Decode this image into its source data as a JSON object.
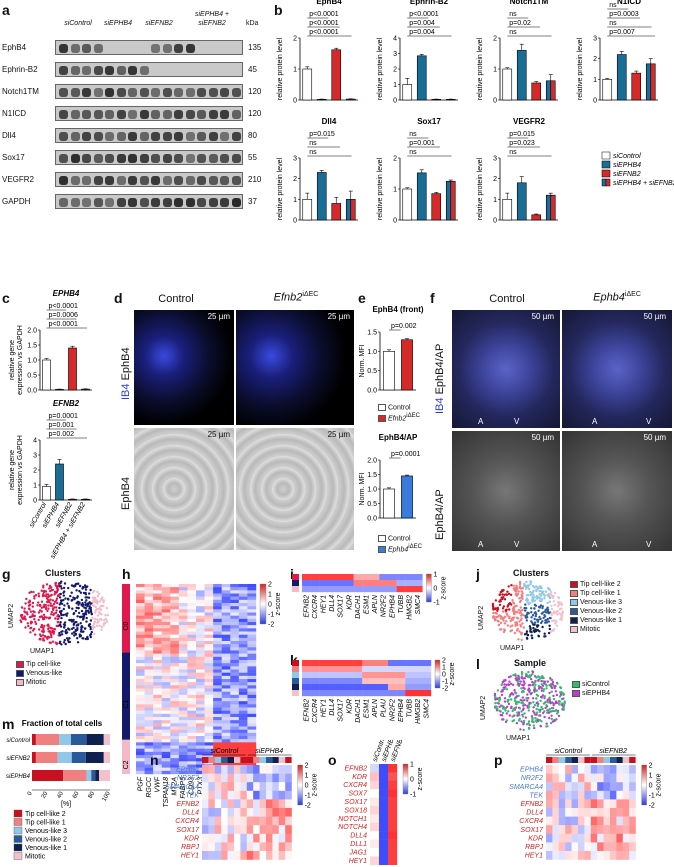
{
  "panels": {
    "a": {
      "label": "a",
      "conditions": [
        "siControl",
        "siEPHB4",
        "siEFNB2",
        "siEPHB4 +\nsiEFNB2"
      ],
      "kda_label": "kDa",
      "rows": [
        {
          "name": "EphB4",
          "kda": "135"
        },
        {
          "name": "Ephrin-B2",
          "kda": "45"
        },
        {
          "name": "Notch1TM",
          "kda": "120"
        },
        {
          "name": "N1ICD",
          "kda": "120"
        },
        {
          "name": "Dll4",
          "kda": "80"
        },
        {
          "name": "Sox17",
          "kda": "55"
        },
        {
          "name": "VEGFR2",
          "kda": "210"
        },
        {
          "name": "GAPDH",
          "kda": "37"
        }
      ]
    },
    "b": {
      "label": "b",
      "ylabel": "relative protein level",
      "legend": [
        "siControl",
        "siEPHB4",
        "siEFNB2",
        "siEPHB4 + siEFNB2"
      ],
      "charts": [
        {
          "title": "EphB4",
          "ymax": 2,
          "yticks": [
            "0",
            "1",
            "2"
          ],
          "values": [
            1.0,
            0.02,
            1.62,
            0.03
          ],
          "errs": [
            0.07,
            0.01,
            0.05,
            0.01
          ],
          "stats": [
            "p<0.0001",
            "p<0.0001",
            "p<0.0001"
          ]
        },
        {
          "title": "Ephrin-B2",
          "ymax": 4,
          "yticks": [
            "0",
            "1",
            "2",
            "3",
            "4"
          ],
          "values": [
            1.0,
            2.85,
            0.04,
            0.04
          ],
          "errs": [
            0.4,
            0.1,
            0.02,
            0.02
          ],
          "stats": [
            "p=0.004",
            "p=0.004",
            "p<0.0001"
          ]
        },
        {
          "title": "Notch1TM",
          "ymax": 2,
          "yticks": [
            "0",
            "1",
            "2"
          ],
          "values": [
            1.0,
            1.6,
            0.55,
            0.62
          ],
          "errs": [
            0.04,
            0.2,
            0.04,
            0.2
          ],
          "stats": [
            "ns",
            "p=0.02",
            "ns"
          ]
        },
        {
          "title": "N1ICD",
          "ymax": 3,
          "yticks": [
            "0",
            "1",
            "2",
            "3"
          ],
          "values": [
            1.0,
            2.2,
            1.3,
            1.75
          ],
          "errs": [
            0.04,
            0.15,
            0.1,
            0.25
          ],
          "stats": [
            "p=0.007",
            "ns",
            "p=0.0003",
            "ns"
          ]
        },
        {
          "title": "Dll4",
          "ymax": 3,
          "yticks": [
            "0",
            "1",
            "2",
            "3"
          ],
          "values": [
            1.0,
            2.3,
            0.8,
            1.0
          ],
          "errs": [
            0.3,
            0.1,
            0.3,
            0.4
          ],
          "stats": [
            "ns",
            "ns",
            "p=0.015"
          ]
        },
        {
          "title": "Sox17",
          "ymax": 2,
          "yticks": [
            "0",
            "1",
            "2"
          ],
          "values": [
            1.0,
            1.52,
            0.85,
            1.25
          ],
          "errs": [
            0.04,
            0.1,
            0.04,
            0.04
          ],
          "stats": [
            "ns",
            "p=0.001",
            "ns"
          ]
        },
        {
          "title": "VEGFR2",
          "ymax": 3,
          "yticks": [
            "0",
            "1",
            "2",
            "3"
          ],
          "values": [
            1.0,
            1.8,
            0.25,
            1.2
          ],
          "errs": [
            0.3,
            0.3,
            0.04,
            0.1
          ],
          "stats": [
            "ns",
            "p=0.023",
            "p=0.015"
          ]
        }
      ]
    },
    "c": {
      "label": "c",
      "ylabel": "relative gene\nexpression vs GAPDH",
      "xlabels": [
        "siControl",
        "siEPHB4",
        "siEFNB2",
        "siEPHB4 + siEFNB2"
      ],
      "charts": [
        {
          "title": "EPHB4",
          "ymax": 2,
          "yticks": [
            "0.0",
            "0.5",
            "1.0",
            "1.5",
            "2.0"
          ],
          "values": [
            1.0,
            0.02,
            1.4,
            0.03
          ],
          "errs": [
            0.05,
            0.01,
            0.06,
            0.01
          ],
          "stats": [
            "p<0.0001",
            "p=0.0006",
            "p<0.0001"
          ]
        },
        {
          "title": "EFNB2",
          "ymax": 4,
          "yticks": [
            "0",
            "1",
            "2",
            "3",
            "4"
          ],
          "values": [
            0.9,
            2.4,
            0.05,
            0.05
          ],
          "errs": [
            0.15,
            0.3,
            0.02,
            0.02
          ],
          "stats": [
            "p=0.002",
            "p=0.001",
            "p=0.0001"
          ]
        }
      ]
    },
    "d": {
      "label": "d",
      "col1": "Control",
      "col2": "Efnb2",
      "col2_sup": "iΔEC",
      "row1": "IB4 EphB4",
      "row1_a": "IB4",
      "row1_b": "EphB4",
      "row2": "EphB4",
      "scale": "25 µm"
    },
    "e": {
      "label": "e",
      "charts": [
        {
          "title": "EphB4 (front)",
          "ylabel": "Norm. MFI",
          "ymax": 1.5,
          "yticks": [
            "0.0",
            "0.5",
            "1.0",
            "1.5"
          ],
          "values": [
            1.0,
            1.3
          ],
          "errs": [
            0.04,
            0.03
          ],
          "stat": "p=0.002",
          "legend": [
            "Control",
            "Efnb2"
          ],
          "legend_sup": "iΔEC",
          "color": "#d42a2a"
        },
        {
          "title": "EphB4/AP",
          "ylabel": "Norm. MFI",
          "ymax": 2.0,
          "yticks": [
            "0.0",
            "0.5",
            "1.0",
            "1.5",
            "2.0"
          ],
          "values": [
            1.0,
            1.45
          ],
          "errs": [
            0.04,
            0.03
          ],
          "stat": "p=0.0001",
          "legend": [
            "Control",
            "Ephb4"
          ],
          "legend_sup": "iΔEC",
          "color": "#3a7be0"
        }
      ]
    },
    "f": {
      "label": "f",
      "col1": "Control",
      "col2": "Ephb4",
      "col2_sup": "iΔEC",
      "row1": "IB4 EphB4/AP",
      "row1_a": "IB4",
      "row1_b": "EphB4/AP",
      "row2": "EphB4/AP",
      "scale": "50 µm",
      "a_label": "A",
      "v_label": "V"
    },
    "g": {
      "label": "g",
      "title": "Clusters",
      "xlabel": "UMAP1",
      "ylabel": "UMAP2",
      "legend": [
        {
          "name": "Tip cell-like",
          "color": "#e0194d"
        },
        {
          "name": "Venous-like",
          "color": "#141a6b"
        },
        {
          "name": "Mitotic",
          "color": "#f4b8c8"
        }
      ]
    },
    "h": {
      "label": "h",
      "clusters": [
        "C0",
        "C1",
        "C2"
      ],
      "genes": [
        "PGF",
        "RGCC",
        "VWF",
        "TSPAN18",
        "MT2A",
        "FABP5",
        "CD93",
        "PTX3",
        "SERPINE1",
        "TOP2A",
        "CCNA2",
        "NCAPG",
        "MKI67",
        "RRM2"
      ],
      "cbar_ticks": [
        "2",
        "1",
        "0",
        "-1",
        "-2"
      ],
      "cbar_label": "z-score"
    },
    "i": {
      "label": "i",
      "genes": [
        "EFNB2",
        "CXCR4",
        "HEY1",
        "DLL4",
        "SOX17",
        "KDR",
        "DACH1",
        "ESM1",
        "APLN",
        "NR2F2",
        "EPHB4",
        "TUBB",
        "HMGB2",
        "SMC4"
      ],
      "cbar_ticks": [
        "1",
        "0",
        "-1"
      ],
      "cbar_label": "z-score"
    },
    "j": {
      "label": "j",
      "title": "Clusters",
      "xlabel": "UMAP1",
      "ylabel": "UMAP2",
      "legend": [
        {
          "name": "Tip cell-like 2",
          "color": "#c8101e"
        },
        {
          "name": "Tip cell-like 1",
          "color": "#f08080"
        },
        {
          "name": "Venous-like 3",
          "color": "#90c8e8"
        },
        {
          "name": "Venous-like 2",
          "color": "#2a5a9a"
        },
        {
          "name": "Venous-like 1",
          "color": "#0e2050"
        },
        {
          "name": "Mitotic",
          "color": "#f4c0cc"
        }
      ]
    },
    "k": {
      "label": "k",
      "genes": [
        "EFNB2",
        "CXCR4",
        "HEY1",
        "DLL4",
        "SOX17",
        "KDR",
        "DACH1",
        "ESM1",
        "APLN",
        "PLAU",
        "NR2F2",
        "EPHB4",
        "TUBB",
        "HMGB2",
        "SMC4"
      ],
      "cbar_ticks": [
        "2",
        "1",
        "0",
        "-1",
        "-2"
      ],
      "cbar_label": "z-score"
    },
    "l": {
      "label": "l",
      "title": "Sample",
      "xlabel": "UMAP1",
      "ylabel": "UMAP2",
      "legend": [
        {
          "name": "siControl",
          "color": "#2fbf6a"
        },
        {
          "name": "siEPHB4",
          "color": "#c03ad0"
        }
      ]
    },
    "m": {
      "label": "m",
      "title": "Fraction of total cells",
      "xlabel": "[%]",
      "xticks": [
        "0",
        "20",
        "40",
        "60",
        "80",
        "100"
      ],
      "rows": [
        {
          "name": "siControl",
          "fractions": [
            5,
            30,
            15,
            20,
            22,
            8
          ]
        },
        {
          "name": "siEFNB2",
          "fractions": [
            5,
            28,
            18,
            18,
            23,
            8
          ]
        },
        {
          "name": "siEPHB4",
          "fractions": [
            40,
            30,
            6,
            5,
            5,
            14
          ]
        }
      ],
      "legend": [
        {
          "name": "Tip cell-like 2",
          "color": "#c8101e"
        },
        {
          "name": "Tip cell-like 1",
          "color": "#f08080"
        },
        {
          "name": "Venous-like 3",
          "color": "#90c8e8"
        },
        {
          "name": "Venous-like 2",
          "color": "#2a5a9a"
        },
        {
          "name": "Venous-like 1",
          "color": "#0e2050"
        },
        {
          "name": "Mitotic",
          "color": "#f4c0cc"
        }
      ]
    },
    "n": {
      "label": "n",
      "groups": [
        "siControl",
        "siEPHB4"
      ],
      "genes_blue": [
        "EPHB4",
        "NR2F2",
        "SMARCA4",
        "TEK"
      ],
      "genes_red": [
        "EFNB2",
        "DLL4",
        "CXCR4",
        "SOX17",
        "KDR",
        "RBPJ",
        "HEY1"
      ],
      "cbar_ticks": [
        "2",
        "1",
        "0",
        "-1",
        "-2"
      ],
      "cbar_label": "z-score"
    },
    "o": {
      "label": "o",
      "cols": [
        "siControl",
        "siEPHB4",
        "siEFNB2"
      ],
      "genes": [
        "EFNB2",
        "KDR",
        "CXCR4",
        "SOX7",
        "SOX17",
        "SOX18",
        "NOTCH1",
        "NOTCH4",
        "DLL4",
        "DLL1",
        "JAG1",
        "HEY1"
      ],
      "cbar_ticks": [
        "1",
        "0",
        "-1"
      ],
      "cbar_label": "z-score"
    },
    "p": {
      "label": "p",
      "groups": [
        "siControl",
        "siEFNB2"
      ],
      "genes_blue": [
        "EPHB4",
        "NR2F2",
        "SMARCA4",
        "TEK"
      ],
      "genes_red": [
        "EFNB2",
        "DLL4",
        "CXCR4",
        "SOX17",
        "KDR",
        "RBPJ",
        "HEY1"
      ],
      "cbar_ticks": [
        "2",
        "1",
        "0",
        "-1",
        "-2"
      ],
      "cbar_label": "z-score"
    }
  },
  "colors": {
    "white": "#ffffff",
    "teal": "#1a6e96",
    "red": "#d42a2a",
    "blue": "#3a7be0"
  }
}
